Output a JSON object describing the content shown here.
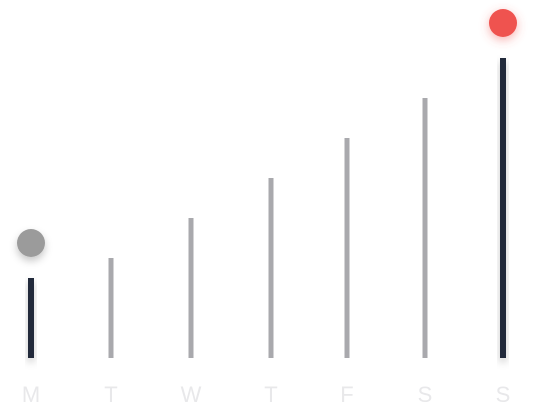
{
  "chart_data": {
    "type": "bar",
    "categories": [
      "M",
      "T",
      "W",
      "T",
      "F",
      "S",
      "S"
    ],
    "values": [
      2,
      2.5,
      3.5,
      4.5,
      5.5,
      6.5,
      7.5
    ],
    "ylim": [
      0,
      7.5
    ],
    "grid": false,
    "highlighted_categories": [
      0,
      6
    ],
    "markers": [
      {
        "category_index": 0,
        "color": "#9b9b9b"
      },
      {
        "category_index": 6,
        "color": "#ef5350"
      }
    ],
    "colors": {
      "bar_default": "#a9a9ad",
      "bar_highlight": "#232a3a",
      "tick_label": "#e8e8ea"
    }
  }
}
